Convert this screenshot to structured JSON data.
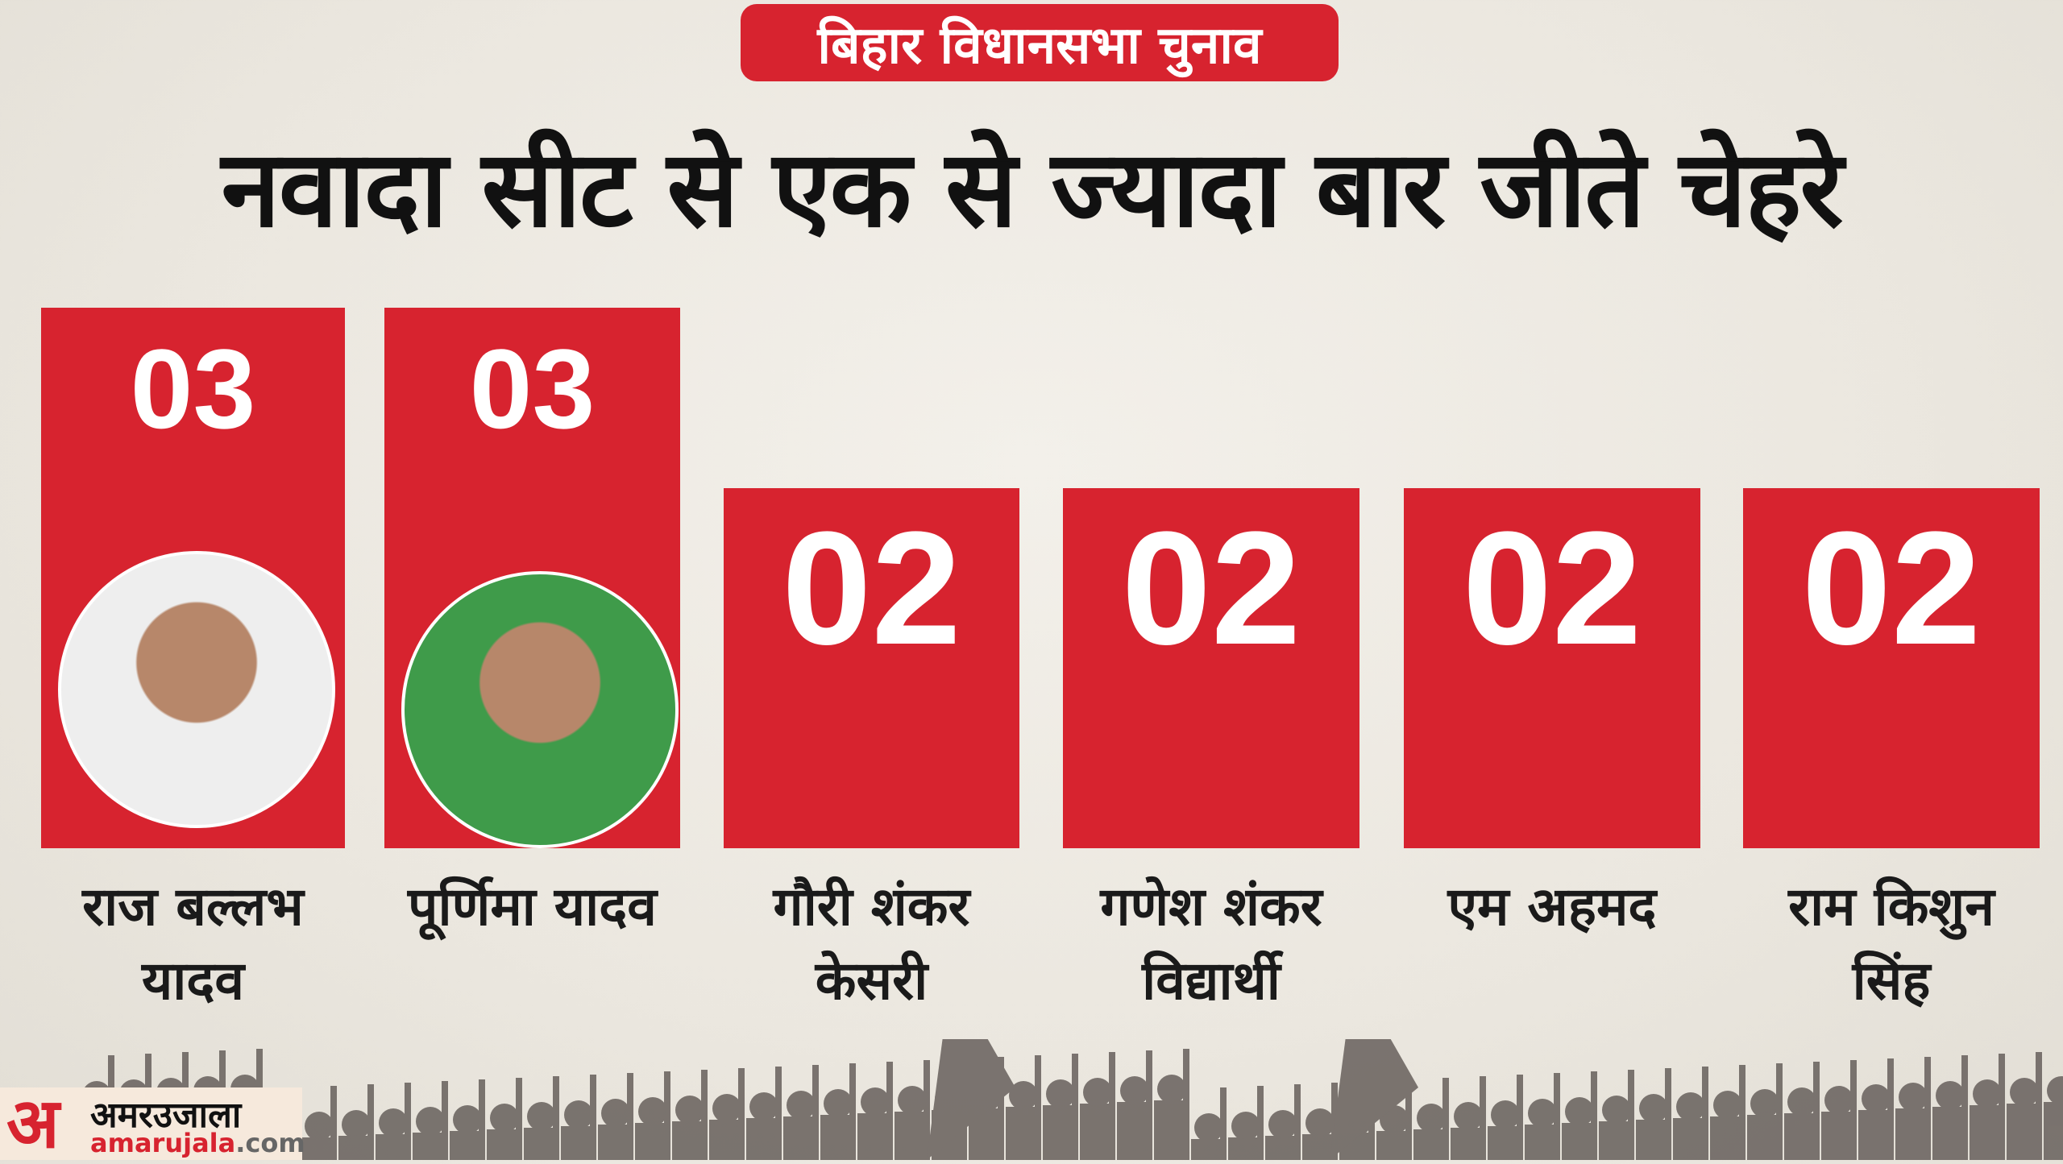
{
  "header": {
    "tag": "बिहार विधानसभा चुनाव",
    "title": "नवादा सीट से एक से ज्यादा बार जीते चेहरे"
  },
  "chart_data": {
    "type": "bar",
    "categories": [
      "राज बल्लभ यादव",
      "पूर्णिमा यादव",
      "गौरी शंकर केसरी",
      "गणेश शंकर विद्यार्थी",
      "एम अहमद",
      "राम किशुन सिंह"
    ],
    "values": [
      3,
      3,
      2,
      2,
      2,
      2
    ],
    "labels": [
      "03",
      "03",
      "02",
      "02",
      "02",
      "02"
    ],
    "name_lines": [
      [
        "राज बल्लभ",
        "यादव"
      ],
      [
        "पूर्णिमा यादव"
      ],
      [
        "गौरी शंकर",
        "केसरी"
      ],
      [
        "गणेश शंकर",
        "विद्यार्थी"
      ],
      [
        "एम अहमद"
      ],
      [
        "राम किशुन",
        "सिंह"
      ]
    ],
    "bar_color": "#d7232f",
    "photos": [
      true,
      true,
      false,
      false,
      false,
      false
    ]
  },
  "logo": {
    "mark": "अ",
    "hindi": "अमरउजाला",
    "domain_main": "amarujala",
    "domain_tld": ".com"
  }
}
